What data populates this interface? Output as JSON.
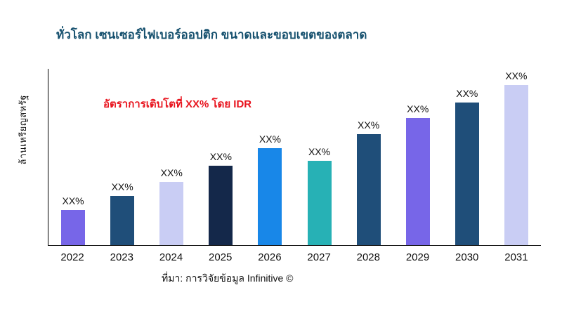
{
  "title": {
    "text": "ทั่วโลก เซนเซอร์ไฟเบอร์ออปติก ขนาดและขอบเขตของตลาด",
    "color": "#15506e"
  },
  "annotation": {
    "text": "อัตราการเติบโตที่ XX% โดย IDR",
    "color": "#e8131d"
  },
  "y_axis": {
    "label": "ล้านเหรียญสหรัฐ"
  },
  "source": {
    "text": "ที่มา: การวิจัยข้อมูล Infinitive ©"
  },
  "chart_data": {
    "type": "bar",
    "title": "ทั่วโลก เซนเซอร์ไฟเบอร์ออปติก ขนาดและขอบเขตของตลาด",
    "xlabel": "",
    "ylabel": "ล้านเหรียญสหรัฐ",
    "categories": [
      "2022",
      "2023",
      "2024",
      "2025",
      "2026",
      "2027",
      "2028",
      "2029",
      "2030",
      "2031"
    ],
    "bar_labels": [
      "XX%",
      "XX%",
      "XX%",
      "XX%",
      "XX%",
      "XX%",
      "XX%",
      "XX%",
      "XX%",
      "XX%"
    ],
    "values_pct_of_axis": [
      20,
      28,
      36,
      45,
      55,
      48,
      63,
      72,
      81,
      91
    ],
    "bar_colors": [
      "#7766e8",
      "#1f4e79",
      "#c9cdf4",
      "#14284a",
      "#1887e8",
      "#27b1b5",
      "#1f4e79",
      "#7766e8",
      "#1f4e79",
      "#c9cdf4"
    ],
    "annotation": "อัตราการเติบโตที่ XX% โดย IDR",
    "legend": false,
    "grid": false,
    "ylim_note": "values are relative bar heights in percent of plot height; numeric axis not shown in source image"
  }
}
